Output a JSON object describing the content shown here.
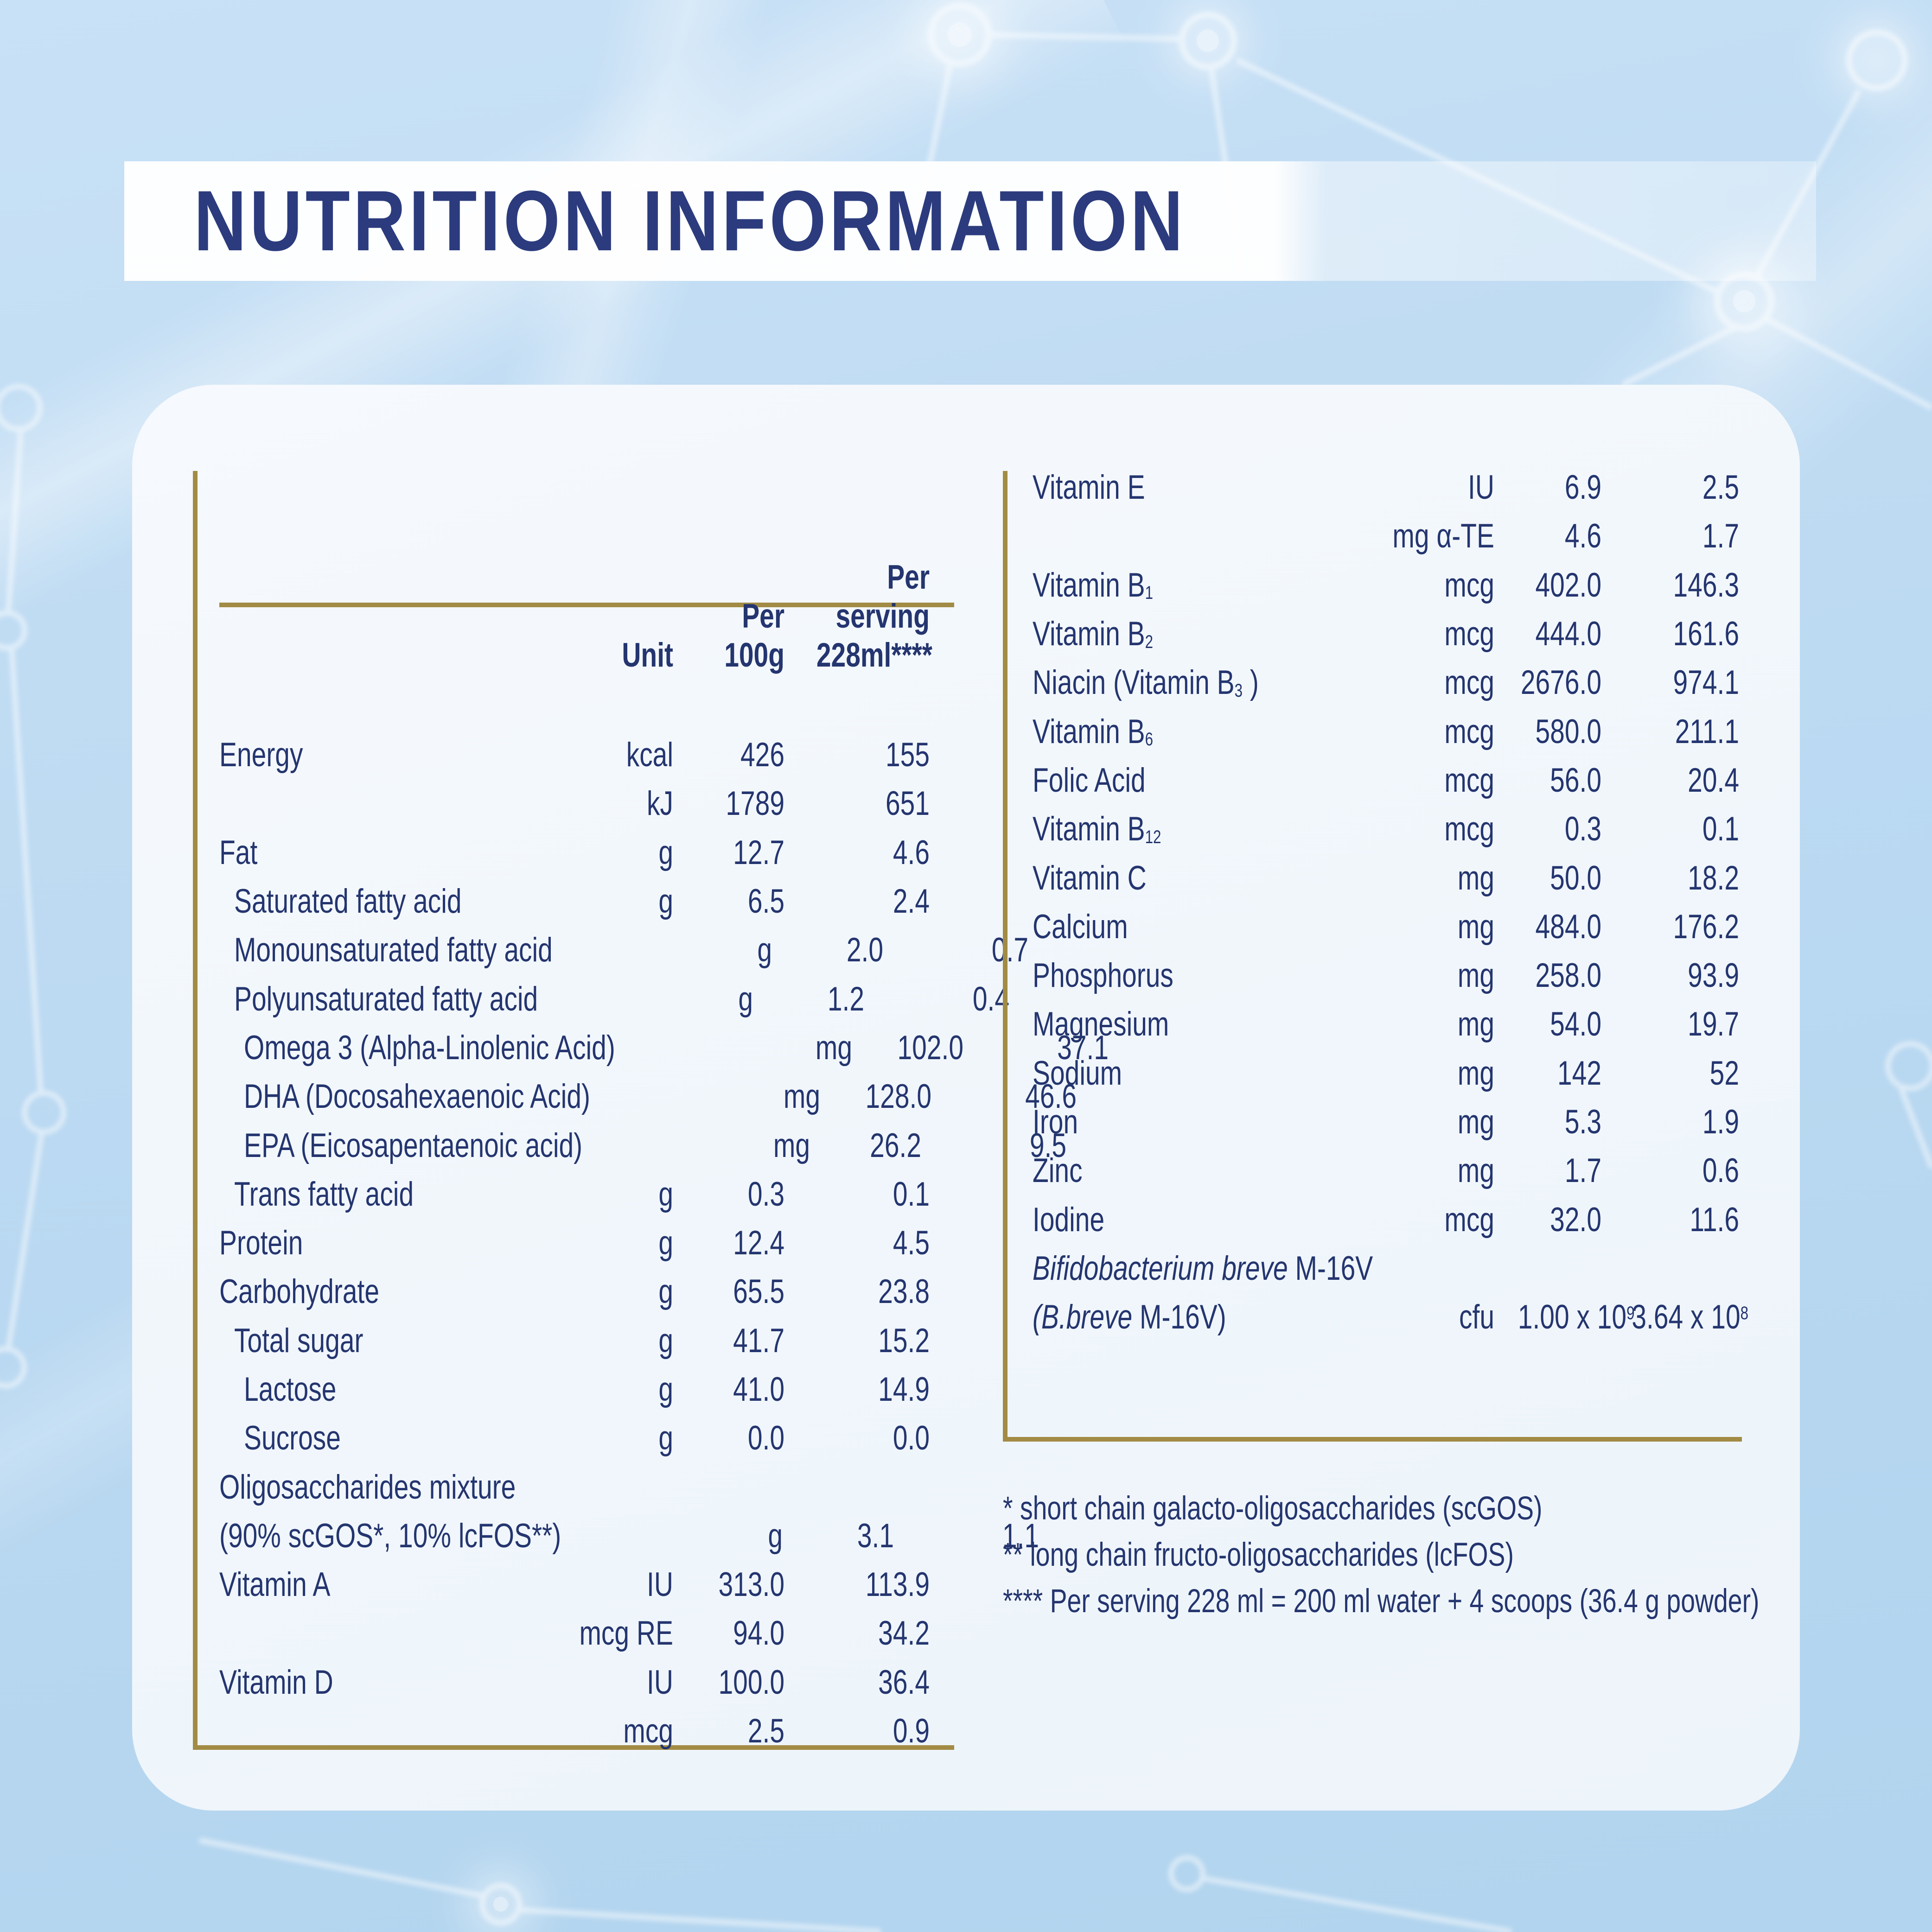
{
  "banner": {
    "title": "NUTRITION INFORMATION"
  },
  "colors": {
    "navy_text": "#24356F",
    "title_navy": "#2B3B7D",
    "gold_rule": "#A28B44",
    "card_background": "#F0F6FB",
    "page_background": "#BDD9F1"
  },
  "left_table": {
    "header": {
      "unit": "Unit",
      "per_100g": "Per\n100g",
      "per_serving": "Per\nserving\n228ml****"
    },
    "rows": [
      {
        "indent": 0,
        "label_parts": [
          {
            "t": "Energy"
          }
        ],
        "unit": "kcal",
        "v1": "426",
        "v2": "155"
      },
      {
        "indent": 0,
        "label_parts": [],
        "unit": "kJ",
        "v1": "1789",
        "v2": "651"
      },
      {
        "indent": 0,
        "label_parts": [
          {
            "t": "Fat"
          }
        ],
        "unit": "g",
        "v1": "12.7",
        "v2": "4.6"
      },
      {
        "indent": 1,
        "label_parts": [
          {
            "t": "Saturated fatty acid"
          }
        ],
        "unit": "g",
        "v1": "6.5",
        "v2": "2.4"
      },
      {
        "indent": 1,
        "label_parts": [
          {
            "t": "Monounsaturated fatty acid"
          }
        ],
        "unit": "g",
        "v1": "2.0",
        "v2": "0.7"
      },
      {
        "indent": 1,
        "label_parts": [
          {
            "t": "Polyunsaturated fatty acid"
          }
        ],
        "unit": "g",
        "v1": "1.2",
        "v2": "0.4"
      },
      {
        "indent": 2,
        "label_parts": [
          {
            "t": "Omega 3 (Alpha-Linolenic Acid)"
          }
        ],
        "unit": "mg",
        "v1": "102.0",
        "v2": "37.1"
      },
      {
        "indent": 2,
        "label_parts": [
          {
            "t": "DHA (Docosahexaenoic Acid)"
          }
        ],
        "unit": "mg",
        "v1": "128.0",
        "v2": "46.6"
      },
      {
        "indent": 2,
        "label_parts": [
          {
            "t": "EPA (Eicosapentaenoic acid)"
          }
        ],
        "unit": "mg",
        "v1": "26.2",
        "v2": "9.5"
      },
      {
        "indent": 1,
        "label_parts": [
          {
            "t": "Trans fatty acid"
          }
        ],
        "unit": "g",
        "v1": "0.3",
        "v2": "0.1"
      },
      {
        "indent": 0,
        "label_parts": [
          {
            "t": "Protein"
          }
        ],
        "unit": "g",
        "v1": "12.4",
        "v2": "4.5"
      },
      {
        "indent": 0,
        "label_parts": [
          {
            "t": "Carbohydrate"
          }
        ],
        "unit": "g",
        "v1": "65.5",
        "v2": "23.8"
      },
      {
        "indent": 1,
        "label_parts": [
          {
            "t": "Total sugar"
          }
        ],
        "unit": "g",
        "v1": "41.7",
        "v2": "15.2"
      },
      {
        "indent": 2,
        "label_parts": [
          {
            "t": "Lactose"
          }
        ],
        "unit": "g",
        "v1": "41.0",
        "v2": "14.9"
      },
      {
        "indent": 2,
        "label_parts": [
          {
            "t": "Sucrose"
          }
        ],
        "unit": "g",
        "v1": "0.0",
        "v2": "0.0"
      },
      {
        "indent": 0,
        "label_parts": [
          {
            "t": "Oligosaccharides mixture"
          }
        ],
        "unit": "",
        "v1": "",
        "v2": ""
      },
      {
        "indent": 0,
        "label_parts": [
          {
            "t": "(90% scGOS*, 10% lcFOS**)"
          }
        ],
        "unit": "g",
        "v1": "3.1",
        "v2": "1.1"
      },
      {
        "indent": 0,
        "label_parts": [
          {
            "t": "Vitamin A"
          }
        ],
        "unit": "IU",
        "v1": "313.0",
        "v2": "113.9"
      },
      {
        "indent": 0,
        "label_parts": [],
        "unit": "mcg RE",
        "v1": "94.0",
        "v2": "34.2"
      },
      {
        "indent": 0,
        "label_parts": [
          {
            "t": "Vitamin D"
          }
        ],
        "unit": "IU",
        "v1": "100.0",
        "v2": "36.4"
      },
      {
        "indent": 0,
        "label_parts": [],
        "unit": "mcg",
        "v1": "2.5",
        "v2": "0.9"
      }
    ]
  },
  "right_table": {
    "rows": [
      {
        "indent": 0,
        "label_parts": [
          {
            "t": "Vitamin E"
          }
        ],
        "unit": "IU",
        "v1": "6.9",
        "v2": "2.5"
      },
      {
        "indent": 0,
        "label_parts": [],
        "unit": "mg α-TE",
        "v1": "4.6",
        "v2": "1.7"
      },
      {
        "indent": 0,
        "label_parts": [
          {
            "t": "Vitamin B"
          },
          {
            "t": "1",
            "s": "sub"
          }
        ],
        "unit": "mcg",
        "v1": "402.0",
        "v2": "146.3"
      },
      {
        "indent": 0,
        "label_parts": [
          {
            "t": "Vitamin B"
          },
          {
            "t": "2",
            "s": "sub"
          }
        ],
        "unit": "mcg",
        "v1": "444.0",
        "v2": "161.6"
      },
      {
        "indent": 0,
        "label_parts": [
          {
            "t": "Niacin (Vitamin B"
          },
          {
            "t": "3",
            "s": "sub"
          },
          {
            "t": " )"
          }
        ],
        "unit": "mcg",
        "v1": "2676.0",
        "v2": "974.1"
      },
      {
        "indent": 0,
        "label_parts": [
          {
            "t": "Vitamin B"
          },
          {
            "t": "6",
            "s": "sub"
          }
        ],
        "unit": "mcg",
        "v1": "580.0",
        "v2": "211.1"
      },
      {
        "indent": 0,
        "label_parts": [
          {
            "t": "Folic Acid"
          }
        ],
        "unit": "mcg",
        "v1": "56.0",
        "v2": "20.4"
      },
      {
        "indent": 0,
        "label_parts": [
          {
            "t": "Vitamin B"
          },
          {
            "t": "12",
            "s": "sub"
          }
        ],
        "unit": "mcg",
        "v1": "0.3",
        "v2": "0.1"
      },
      {
        "indent": 0,
        "label_parts": [
          {
            "t": "Vitamin C"
          }
        ],
        "unit": "mg",
        "v1": "50.0",
        "v2": "18.2"
      },
      {
        "indent": 0,
        "label_parts": [
          {
            "t": "Calcium"
          }
        ],
        "unit": "mg",
        "v1": "484.0",
        "v2": "176.2"
      },
      {
        "indent": 0,
        "label_parts": [
          {
            "t": "Phosphorus"
          }
        ],
        "unit": "mg",
        "v1": "258.0",
        "v2": "93.9"
      },
      {
        "indent": 0,
        "label_parts": [
          {
            "t": "Magnesium"
          }
        ],
        "unit": "mg",
        "v1": "54.0",
        "v2": "19.7"
      },
      {
        "indent": 0,
        "label_parts": [
          {
            "t": "Sodium"
          }
        ],
        "unit": "mg",
        "v1": "142",
        "v2": "52"
      },
      {
        "indent": 0,
        "label_parts": [
          {
            "t": "Iron"
          }
        ],
        "unit": "mg",
        "v1": "5.3",
        "v2": "1.9"
      },
      {
        "indent": 0,
        "label_parts": [
          {
            "t": "Zinc"
          }
        ],
        "unit": "mg",
        "v1": "1.7",
        "v2": "0.6"
      },
      {
        "indent": 0,
        "label_parts": [
          {
            "t": "Iodine"
          }
        ],
        "unit": "mcg",
        "v1": "32.0",
        "v2": "11.6"
      },
      {
        "indent": 0,
        "label_parts": [
          {
            "t": "Bifidobacterium breve",
            "s": "i"
          },
          {
            "t": " M-16V"
          }
        ],
        "unit": "",
        "v1": "",
        "v2": ""
      },
      {
        "indent": 0,
        "label_parts": [
          {
            "t": "(B.breve",
            "s": "i"
          },
          {
            "t": " M-16V)"
          }
        ],
        "unit": "cfu",
        "v1": "1.00 x 10",
        "v1_sup": "9",
        "v2": "3.64 x 10",
        "v2_sup": "8"
      }
    ]
  },
  "footnotes": [
    "* short chain galacto-oligosaccharides (scGOS)",
    "** long chain fructo-oligosaccharides (lcFOS)",
    "**** Per serving 228 ml = 200 ml water + 4 scoops (36.4 g powder)"
  ]
}
